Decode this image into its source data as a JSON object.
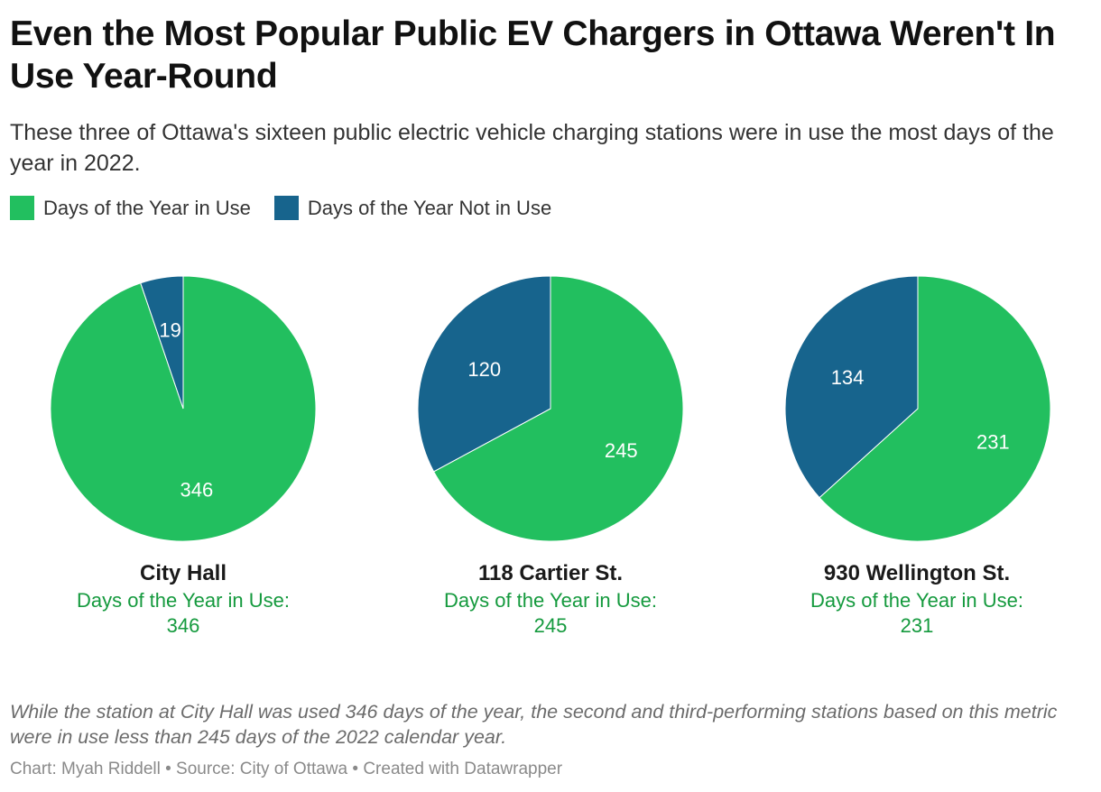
{
  "title": "Even the Most Popular Public EV Chargers in Ottawa Weren't In Use Year-Round",
  "subtitle": "These three of Ottawa's sixteen public electric vehicle charging stations were in use the most days of the year in 2022.",
  "legend": [
    {
      "label": "Days of the Year in Use",
      "color": "#22bf5f"
    },
    {
      "label": "Days of the Year Not in Use",
      "color": "#17648d"
    }
  ],
  "chart_data": {
    "type": "pie",
    "series_names": [
      "Days of the Year in Use",
      "Days of the Year Not in Use"
    ],
    "colors": {
      "in_use": "#22bf5f",
      "not_in_use": "#17648d"
    },
    "pies": [
      {
        "name": "City Hall",
        "in_use": 346,
        "not_in_use": 19,
        "caption_label": "Days of the Year in Use:",
        "caption_value": "346"
      },
      {
        "name": "118 Cartier St.",
        "in_use": 245,
        "not_in_use": 120,
        "caption_label": "Days of the Year in Use:",
        "caption_value": "245"
      },
      {
        "name": "930 Wellington St.",
        "in_use": 231,
        "not_in_use": 134,
        "caption_label": "Days of the Year in Use:",
        "caption_value": "231"
      }
    ]
  },
  "note": "While the station at City Hall was used 346 days of the year, the second and third-performing stations based on this metric were in use less than 245 days of the 2022 calendar year.",
  "footer": "Chart: Myah Riddell • Source: City of Ottawa • Created with Datawrapper"
}
